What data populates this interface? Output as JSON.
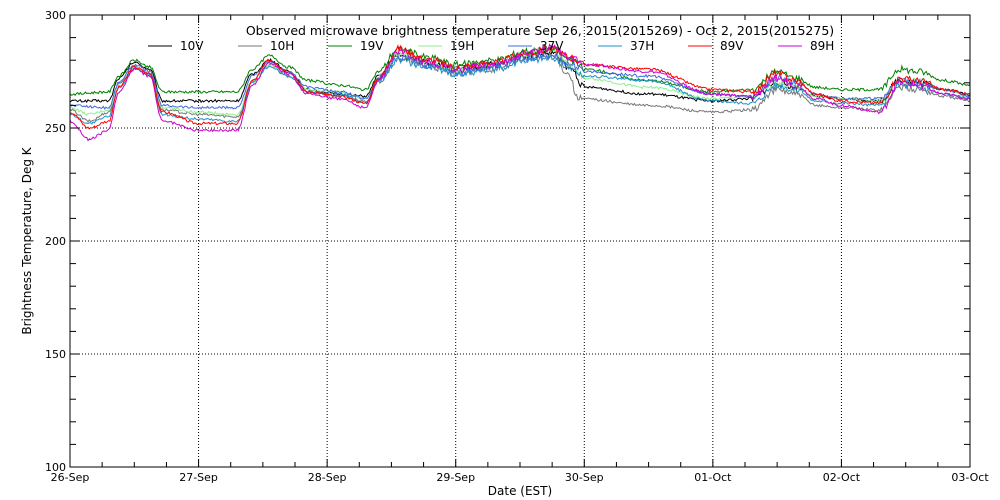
{
  "chart_data": {
    "type": "line",
    "title": "Observed microwave brightness temperature Sep 26, 2015(2015269) - Oct  2, 2015(2015275)",
    "xlabel": "Date (EST)",
    "ylabel": "Brightness Temperature, Deg K",
    "x_tick_labels": [
      "26-Sep",
      "27-Sep",
      "28-Sep",
      "29-Sep",
      "30-Sep",
      "01-Oct",
      "02-Oct",
      "03-Oct"
    ],
    "xlim_days": [
      0,
      7
    ],
    "ylim": [
      100,
      300
    ],
    "y_ticks": [
      100,
      150,
      200,
      250,
      300
    ],
    "grid": true,
    "legend_placement": "top",
    "x_unit": "days since 26-Sep",
    "series": [
      {
        "name": "10V",
        "color": "#000000",
        "knots": [
          [
            0,
            262
          ],
          [
            0.3,
            262
          ],
          [
            0.38,
            272
          ],
          [
            0.5,
            279
          ],
          [
            0.62,
            276
          ],
          [
            0.72,
            262
          ],
          [
            1,
            262
          ],
          [
            1.3,
            262
          ],
          [
            1.42,
            274
          ],
          [
            1.55,
            280
          ],
          [
            1.7,
            275
          ],
          [
            1.85,
            267
          ],
          [
            2.1,
            265
          ],
          [
            2.3,
            264
          ],
          [
            2.4,
            273
          ],
          [
            2.55,
            282
          ],
          [
            2.8,
            279
          ],
          [
            3,
            276
          ],
          [
            3.3,
            278
          ],
          [
            3.55,
            282
          ],
          [
            3.75,
            283
          ],
          [
            3.9,
            276
          ],
          [
            4,
            268
          ],
          [
            4.5,
            265
          ],
          [
            5,
            262
          ],
          [
            5.3,
            263
          ],
          [
            5.5,
            270
          ],
          [
            5.65,
            268
          ],
          [
            5.8,
            264
          ],
          [
            6,
            263
          ],
          [
            6.3,
            262
          ],
          [
            6.45,
            271
          ],
          [
            6.6,
            270
          ],
          [
            6.8,
            267
          ],
          [
            7,
            265
          ]
        ]
      },
      {
        "name": "10H",
        "color": "#777777",
        "knots": [
          [
            0,
            258
          ],
          [
            0.15,
            253
          ],
          [
            0.3,
            257
          ],
          [
            0.38,
            270
          ],
          [
            0.5,
            277
          ],
          [
            0.62,
            274
          ],
          [
            0.72,
            258
          ],
          [
            1,
            256
          ],
          [
            1.3,
            255
          ],
          [
            1.42,
            271
          ],
          [
            1.55,
            278
          ],
          [
            1.7,
            273
          ],
          [
            1.85,
            266
          ],
          [
            2.1,
            264
          ],
          [
            2.3,
            262
          ],
          [
            2.4,
            271
          ],
          [
            2.55,
            281
          ],
          [
            2.8,
            277
          ],
          [
            3,
            274
          ],
          [
            3.3,
            276
          ],
          [
            3.55,
            281
          ],
          [
            3.75,
            282
          ],
          [
            3.88,
            274
          ],
          [
            3.95,
            263
          ],
          [
            4.5,
            260
          ],
          [
            5,
            257
          ],
          [
            5.3,
            258
          ],
          [
            5.5,
            267
          ],
          [
            5.65,
            265
          ],
          [
            5.8,
            260
          ],
          [
            6,
            259
          ],
          [
            6.3,
            258
          ],
          [
            6.45,
            268
          ],
          [
            6.6,
            267
          ],
          [
            6.8,
            264
          ],
          [
            7,
            262
          ]
        ]
      },
      {
        "name": "19V",
        "color": "#008000",
        "knots": [
          [
            0,
            265
          ],
          [
            0.3,
            266
          ],
          [
            0.38,
            273
          ],
          [
            0.5,
            280
          ],
          [
            0.62,
            277
          ],
          [
            0.72,
            266
          ],
          [
            1,
            266
          ],
          [
            1.3,
            266
          ],
          [
            1.42,
            276
          ],
          [
            1.55,
            282
          ],
          [
            1.7,
            277
          ],
          [
            1.85,
            271
          ],
          [
            2.1,
            269
          ],
          [
            2.3,
            267
          ],
          [
            2.4,
            275
          ],
          [
            2.55,
            285
          ],
          [
            2.8,
            281
          ],
          [
            3,
            278
          ],
          [
            3.3,
            280
          ],
          [
            3.55,
            284
          ],
          [
            3.75,
            285
          ],
          [
            3.9,
            280
          ],
          [
            4,
            276
          ],
          [
            4.5,
            271
          ],
          [
            5,
            266
          ],
          [
            5.3,
            267
          ],
          [
            5.5,
            275
          ],
          [
            5.65,
            272
          ],
          [
            5.8,
            268
          ],
          [
            6,
            267
          ],
          [
            6.3,
            267
          ],
          [
            6.45,
            276
          ],
          [
            6.6,
            275
          ],
          [
            6.8,
            271
          ],
          [
            7,
            269
          ]
        ]
      },
      {
        "name": "19H",
        "color": "#90ee90",
        "knots": [
          [
            0,
            259
          ],
          [
            0.15,
            256
          ],
          [
            0.3,
            258
          ],
          [
            0.38,
            269
          ],
          [
            0.5,
            277
          ],
          [
            0.62,
            274
          ],
          [
            0.72,
            259
          ],
          [
            1,
            257
          ],
          [
            1.3,
            256
          ],
          [
            1.42,
            271
          ],
          [
            1.55,
            278
          ],
          [
            1.7,
            274
          ],
          [
            1.85,
            267
          ],
          [
            2.1,
            266
          ],
          [
            2.3,
            263
          ],
          [
            2.4,
            272
          ],
          [
            2.55,
            283
          ],
          [
            2.8,
            279
          ],
          [
            3,
            276
          ],
          [
            3.3,
            278
          ],
          [
            3.55,
            283
          ],
          [
            3.75,
            285
          ],
          [
            3.9,
            277
          ],
          [
            4,
            272
          ],
          [
            4.5,
            268
          ],
          [
            5,
            263
          ],
          [
            5.3,
            264
          ],
          [
            5.5,
            270
          ],
          [
            5.65,
            268
          ],
          [
            5.8,
            264
          ],
          [
            6,
            263
          ],
          [
            6.3,
            262
          ],
          [
            6.45,
            271
          ],
          [
            6.6,
            271
          ],
          [
            6.8,
            267
          ],
          [
            7,
            264
          ]
        ]
      },
      {
        "name": "37V",
        "color": "#4169e1",
        "knots": [
          [
            0,
            260
          ],
          [
            0.3,
            259
          ],
          [
            0.38,
            270
          ],
          [
            0.5,
            278
          ],
          [
            0.62,
            275
          ],
          [
            0.72,
            260
          ],
          [
            1,
            259
          ],
          [
            1.3,
            259
          ],
          [
            1.42,
            273
          ],
          [
            1.55,
            279
          ],
          [
            1.7,
            275
          ],
          [
            1.85,
            268
          ],
          [
            2.1,
            266
          ],
          [
            2.3,
            263
          ],
          [
            2.4,
            272
          ],
          [
            2.55,
            281
          ],
          [
            2.8,
            278
          ],
          [
            3,
            275
          ],
          [
            3.3,
            277
          ],
          [
            3.55,
            281
          ],
          [
            3.75,
            282
          ],
          [
            3.9,
            278
          ],
          [
            4,
            275
          ],
          [
            4.5,
            273
          ],
          [
            5,
            265
          ],
          [
            5.3,
            264
          ],
          [
            5.5,
            272
          ],
          [
            5.65,
            270
          ],
          [
            5.8,
            265
          ],
          [
            6,
            263
          ],
          [
            6.3,
            263
          ],
          [
            6.45,
            271
          ],
          [
            6.6,
            270
          ],
          [
            6.8,
            267
          ],
          [
            7,
            264
          ]
        ]
      },
      {
        "name": "37H",
        "color": "#1e90c8",
        "knots": [
          [
            0,
            256
          ],
          [
            0.15,
            252
          ],
          [
            0.3,
            255
          ],
          [
            0.38,
            268
          ],
          [
            0.5,
            276
          ],
          [
            0.62,
            273
          ],
          [
            0.72,
            256
          ],
          [
            1,
            254
          ],
          [
            1.3,
            253
          ],
          [
            1.42,
            270
          ],
          [
            1.55,
            277
          ],
          [
            1.7,
            273
          ],
          [
            1.85,
            266
          ],
          [
            2.1,
            265
          ],
          [
            2.3,
            261
          ],
          [
            2.4,
            271
          ],
          [
            2.55,
            280
          ],
          [
            2.8,
            277
          ],
          [
            3,
            274
          ],
          [
            3.3,
            276
          ],
          [
            3.55,
            280
          ],
          [
            3.75,
            281
          ],
          [
            3.9,
            276
          ],
          [
            4,
            273
          ],
          [
            4.5,
            271
          ],
          [
            5,
            262
          ],
          [
            5.3,
            261
          ],
          [
            5.5,
            269
          ],
          [
            5.65,
            267
          ],
          [
            5.8,
            262
          ],
          [
            6,
            261
          ],
          [
            6.3,
            260
          ],
          [
            6.45,
            269
          ],
          [
            6.6,
            268
          ],
          [
            6.8,
            265
          ],
          [
            7,
            263
          ]
        ]
      },
      {
        "name": "89V",
        "color": "#ff0000",
        "knots": [
          [
            0,
            257
          ],
          [
            0.15,
            250
          ],
          [
            0.3,
            253
          ],
          [
            0.38,
            268
          ],
          [
            0.5,
            277
          ],
          [
            0.62,
            274
          ],
          [
            0.72,
            257
          ],
          [
            1,
            252
          ],
          [
            1.3,
            252
          ],
          [
            1.42,
            271
          ],
          [
            1.55,
            280
          ],
          [
            1.7,
            275
          ],
          [
            1.85,
            266
          ],
          [
            2.1,
            264
          ],
          [
            2.3,
            261
          ],
          [
            2.4,
            272
          ],
          [
            2.55,
            285
          ],
          [
            2.8,
            280
          ],
          [
            3,
            277
          ],
          [
            3.3,
            279
          ],
          [
            3.55,
            283
          ],
          [
            3.75,
            285
          ],
          [
            3.9,
            281
          ],
          [
            4,
            278
          ],
          [
            4.5,
            276
          ],
          [
            5,
            267
          ],
          [
            5.3,
            266
          ],
          [
            5.5,
            274
          ],
          [
            5.65,
            271
          ],
          [
            5.8,
            265
          ],
          [
            6,
            262
          ],
          [
            6.3,
            261
          ],
          [
            6.45,
            272
          ],
          [
            6.6,
            271
          ],
          [
            6.8,
            267
          ],
          [
            7,
            265
          ]
        ]
      },
      {
        "name": "89H",
        "color": "#cc00cc",
        "knots": [
          [
            0,
            253
          ],
          [
            0.15,
            245
          ],
          [
            0.3,
            249
          ],
          [
            0.38,
            266
          ],
          [
            0.5,
            276
          ],
          [
            0.62,
            273
          ],
          [
            0.72,
            253
          ],
          [
            1,
            249
          ],
          [
            1.3,
            249
          ],
          [
            1.42,
            269
          ],
          [
            1.55,
            279
          ],
          [
            1.7,
            274
          ],
          [
            1.85,
            265
          ],
          [
            2.1,
            263
          ],
          [
            2.3,
            259
          ],
          [
            2.4,
            271
          ],
          [
            2.55,
            284
          ],
          [
            2.8,
            279
          ],
          [
            3,
            276
          ],
          [
            3.3,
            278
          ],
          [
            3.55,
            283
          ],
          [
            3.75,
            286
          ],
          [
            3.9,
            281
          ],
          [
            4,
            278
          ],
          [
            4.5,
            275
          ],
          [
            5,
            265
          ],
          [
            5.3,
            264
          ],
          [
            5.5,
            272
          ],
          [
            5.65,
            269
          ],
          [
            5.8,
            263
          ],
          [
            6,
            260
          ],
          [
            6.3,
            257
          ],
          [
            6.45,
            270
          ],
          [
            6.6,
            269
          ],
          [
            6.8,
            265
          ],
          [
            7,
            263
          ]
        ]
      }
    ]
  }
}
